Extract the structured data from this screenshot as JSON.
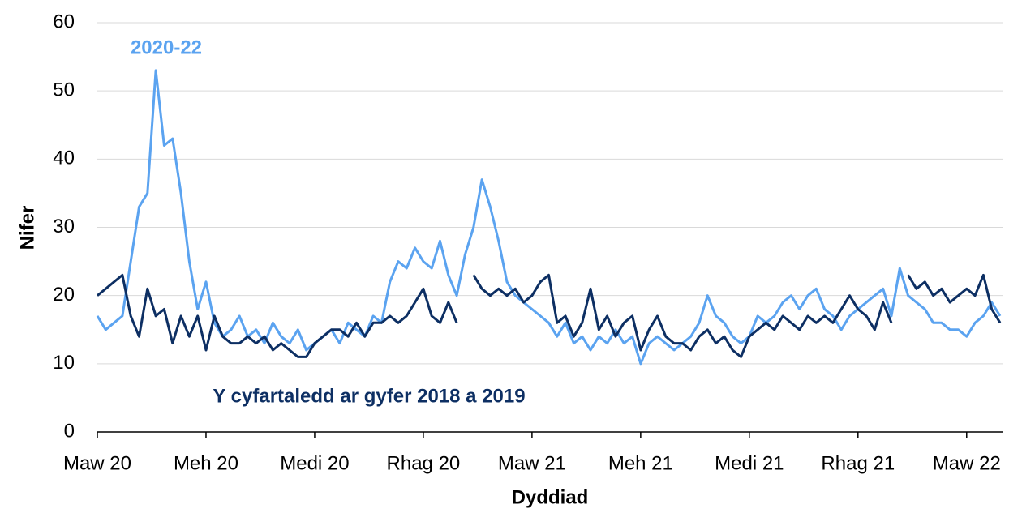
{
  "chart_data": {
    "type": "line",
    "x_label": "Dyddiad",
    "y_label": "Nifer",
    "categories": [
      "Maw 20",
      null,
      null,
      null,
      null,
      null,
      null,
      null,
      null,
      null,
      null,
      null,
      null,
      "Meh 20",
      null,
      null,
      null,
      null,
      null,
      null,
      null,
      null,
      null,
      null,
      null,
      null,
      "Medi 20",
      null,
      null,
      null,
      null,
      null,
      null,
      null,
      null,
      null,
      null,
      null,
      null,
      "Rhag 20",
      null,
      null,
      null,
      null,
      null,
      null,
      null,
      null,
      null,
      null,
      null,
      null,
      "Maw 21",
      null,
      null,
      null,
      null,
      null,
      null,
      null,
      null,
      null,
      null,
      null,
      null,
      "Meh 21",
      null,
      null,
      null,
      null,
      null,
      null,
      null,
      null,
      null,
      null,
      null,
      null,
      "Medi 21",
      null,
      null,
      null,
      null,
      null,
      null,
      null,
      null,
      null,
      null,
      null,
      null,
      "Rhag 21",
      null,
      null,
      null,
      null,
      null,
      null,
      null,
      null,
      null,
      null,
      null,
      null,
      "Maw 22",
      null,
      null,
      null,
      null
    ],
    "series": [
      {
        "name": "2020-22",
        "color": "#5ba3f0",
        "values": [
          17,
          15,
          16,
          17,
          25,
          33,
          35,
          53,
          42,
          43,
          35,
          25,
          18,
          22,
          16,
          14,
          15,
          17,
          14,
          15,
          13,
          16,
          14,
          13,
          15,
          12,
          13,
          14,
          15,
          13,
          16,
          15,
          14,
          17,
          16,
          22,
          25,
          24,
          27,
          25,
          24,
          28,
          23,
          20,
          26,
          30,
          37,
          33,
          28,
          22,
          20,
          19,
          18,
          17,
          16,
          14,
          16,
          13,
          14,
          12,
          14,
          13,
          15,
          13,
          14,
          10,
          13,
          14,
          13,
          12,
          13,
          14,
          16,
          20,
          17,
          16,
          14,
          13,
          14,
          17,
          16,
          17,
          19,
          20,
          18,
          20,
          21,
          18,
          17,
          15,
          17,
          18,
          19,
          20,
          21,
          17,
          24,
          20,
          19,
          18,
          16,
          16,
          15,
          15,
          14,
          16,
          17,
          19,
          17
        ]
      },
      {
        "name": "Y cyfartaledd ar gyfer 2018 a 2019",
        "color": "#0d2f63",
        "values": [
          20,
          21,
          22,
          23,
          17,
          14,
          21,
          17,
          18,
          13,
          17,
          14,
          17,
          12,
          17,
          14,
          13,
          13,
          14,
          13,
          14,
          12,
          13,
          12,
          11,
          11,
          13,
          14,
          15,
          15,
          14,
          16,
          14,
          16,
          16,
          17,
          16,
          17,
          19,
          21,
          17,
          16,
          19,
          16,
          null,
          23,
          21,
          20,
          21,
          20,
          21,
          19,
          20,
          22,
          23,
          16,
          17,
          14,
          16,
          21,
          15,
          17,
          14,
          16,
          17,
          12,
          15,
          17,
          14,
          13,
          13,
          12,
          14,
          15,
          13,
          14,
          12,
          11,
          14,
          15,
          16,
          15,
          17,
          16,
          15,
          17,
          16,
          17,
          16,
          18,
          20,
          18,
          17,
          15,
          19,
          16,
          null,
          23,
          21,
          22,
          20,
          21,
          19,
          20,
          21,
          20,
          23,
          18,
          16
        ]
      }
    ],
    "ylim": [
      0,
      60
    ],
    "yticks": [
      0,
      10,
      20,
      30,
      40,
      50,
      60
    ],
    "grid": true
  }
}
